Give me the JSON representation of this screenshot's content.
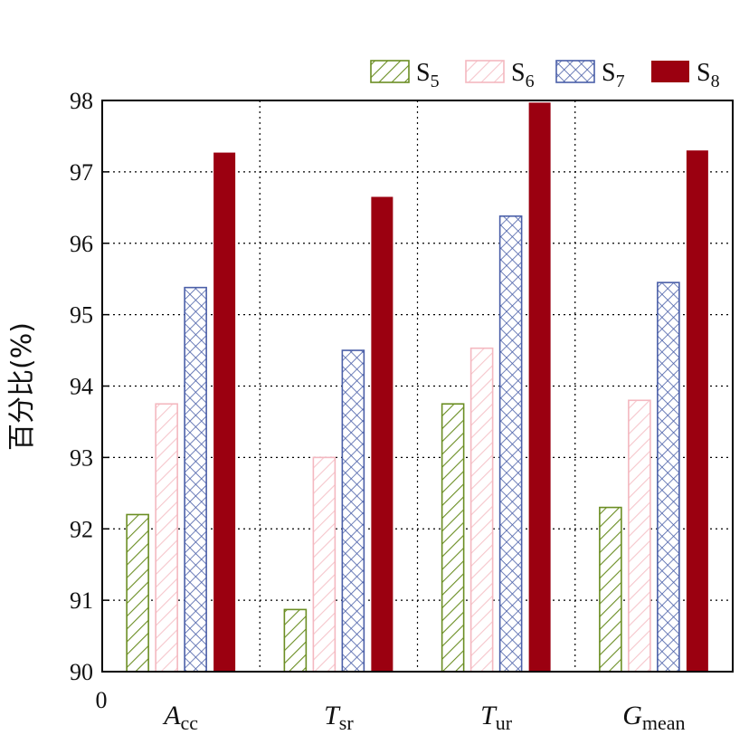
{
  "chart_data": {
    "type": "bar",
    "ylabel": "百分比(%)",
    "ylim": [
      90,
      98
    ],
    "yticks": [
      "90",
      "91",
      "92",
      "93",
      "94",
      "95",
      "96",
      "97",
      "98"
    ],
    "xorigin_label": "0",
    "categories": [
      {
        "main": "A",
        "sub": "cc"
      },
      {
        "main": "T",
        "sub": "sr"
      },
      {
        "main": "T",
        "sub": "ur"
      },
      {
        "main": "G",
        "sub": "mean"
      }
    ],
    "series": [
      {
        "name": "S",
        "sub": "5",
        "pattern": "diagonal-hatch",
        "color": "#6b8e23",
        "values": [
          92.2,
          90.87,
          93.75,
          92.3
        ]
      },
      {
        "name": "S",
        "sub": "6",
        "pattern": "diagonal-hatch-light",
        "color": "#f4b8c0",
        "values": [
          93.75,
          93.0,
          94.53,
          93.8
        ]
      },
      {
        "name": "S",
        "sub": "7",
        "pattern": "crosshatch",
        "color": "#4a5fa8",
        "values": [
          95.38,
          94.5,
          96.38,
          95.45
        ]
      },
      {
        "name": "S",
        "sub": "8",
        "pattern": "solid",
        "color": "#9b0010",
        "values": [
          97.27,
          96.65,
          97.97,
          97.3
        ]
      }
    ],
    "grid": true,
    "legend_position": "top-right"
  }
}
